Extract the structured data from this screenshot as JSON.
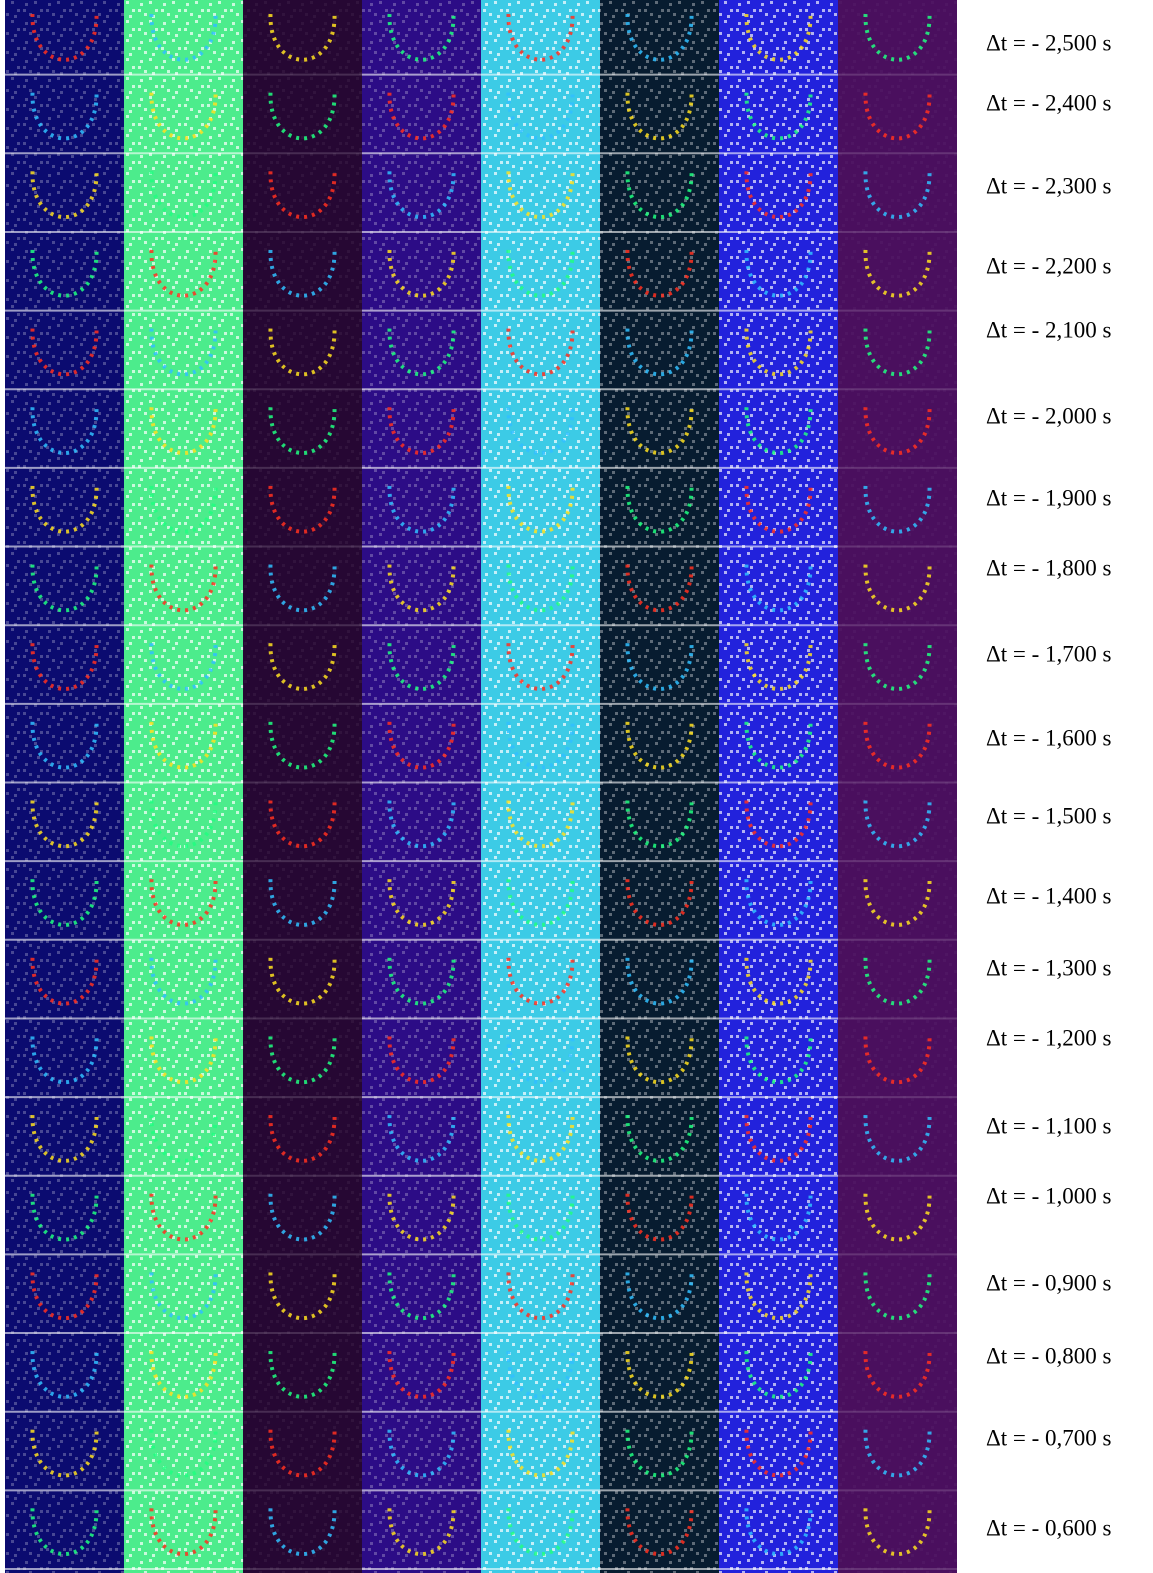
{
  "labels": [
    "Δt = - 2,500 s",
    "Δt = - 2,400 s",
    "Δt = - 2,300 s",
    "Δt = - 2,200 s",
    "Δt = - 2,100 s",
    "Δt = - 2,000 s",
    "Δt = - 1,900 s",
    "Δt = - 1,800 s",
    "Δt = - 1,700 s",
    "Δt = - 1,600 s",
    "Δt = - 1,500 s",
    "Δt = - 1,400 s",
    "Δt = - 1,300 s",
    "Δt = - 1,200 s",
    "Δt = - 1,100 s",
    "Δt = - 1,000 s",
    "Δt = - 0,900 s",
    "Δt = - 0,800 s",
    "Δt = - 0,700 s",
    "Δt = - 0,600 s"
  ]
}
